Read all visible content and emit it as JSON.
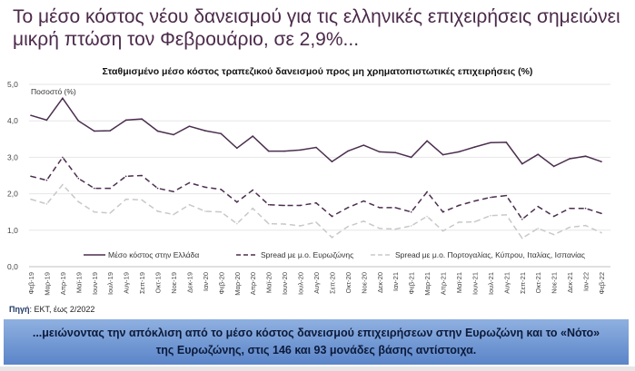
{
  "slide": {
    "title_line1": "Το μέσο κόστος νέου δανεισμού για τις ελληνικές επιχειρήσεις σημειώνει",
    "title_line2": "μικρή πτώση τον Φεβρουάριο, σε 2,9%...",
    "source_label": "Πηγή",
    "source_text": ": ΕΚΤ, έως 2/2022",
    "banner_line1": "...μειώνοντας την απόκλιση από το μέσο κόστος δανεισμού επιχειρήσεων στην Ευρωζώνη και το «Νότο»",
    "banner_line2": "της Ευρωζώνης, στις 146 και 93 μονάδες βάσης αντίστοιχα."
  },
  "chart_data": {
    "type": "line",
    "title": "Σταθμισμένο μέσο κόστος τραπεζικού δανεισμού προς μη χρηματοπιστωτικές επιχειρήσεις (%)",
    "ylabel": "Ποσοστό (%)",
    "ylim": [
      0,
      5
    ],
    "yticks": [
      "0,0",
      "1,0",
      "2,0",
      "3,0",
      "4,0",
      "5,0"
    ],
    "grid": true,
    "legend_placement": "bottom-inside",
    "categories": [
      "Φεβ-19",
      "Μαρ-19",
      "Απρ-19",
      "Μαϊ-19",
      "Ιουν-19",
      "Ιουλ-19",
      "Αυγ-19",
      "Σεπ-19",
      "Οκτ-19",
      "Νοε-19",
      "Δεκ-19",
      "Ιαν-20",
      "Φεβ-20",
      "Μαρ-20",
      "Απρ-20",
      "Μαϊ-20",
      "Ιουν-20",
      "Ιουλ-20",
      "Αυγ-20",
      "Σεπ-20",
      "Οκτ-20",
      "Νοε-20",
      "Δεκ-20",
      "Ιαν-21",
      "Φεβ-21",
      "Μαρ-21",
      "Απρ-21",
      "Μαϊ-21",
      "Ιουν-21",
      "Ιουλ-21",
      "Αυγ-21",
      "Σεπ-21",
      "Οκτ-21",
      "Νοε-21",
      "Δεκ-21",
      "Ιαν-22",
      "Φεβ-22"
    ],
    "series": [
      {
        "name": "Μέσο κόστος στην Ελλάδα",
        "color": "#4b2e4f",
        "dash": "solid",
        "values": [
          4.15,
          4.02,
          4.62,
          4.0,
          3.72,
          3.73,
          4.02,
          4.05,
          3.72,
          3.62,
          3.85,
          3.73,
          3.65,
          3.25,
          3.58,
          3.17,
          3.17,
          3.2,
          3.27,
          2.88,
          3.17,
          3.33,
          3.15,
          3.13,
          3.0,
          3.45,
          3.07,
          3.15,
          3.28,
          3.4,
          3.41,
          2.82,
          3.08,
          2.75,
          2.96,
          3.03,
          2.88
        ]
      },
      {
        "name": "Spread με μ.ο. Ευρωζώνης",
        "color": "#4b2e4f",
        "dash": "dashed",
        "values": [
          2.48,
          2.37,
          3.0,
          2.42,
          2.15,
          2.15,
          2.48,
          2.5,
          2.15,
          2.06,
          2.3,
          2.18,
          2.12,
          1.77,
          2.1,
          1.7,
          1.68,
          1.68,
          1.75,
          1.38,
          1.62,
          1.8,
          1.62,
          1.62,
          1.5,
          2.05,
          1.5,
          1.68,
          1.8,
          1.9,
          1.95,
          1.3,
          1.65,
          1.38,
          1.6,
          1.6,
          1.46
        ]
      },
      {
        "name": "Spread με μ.ο. Πορτογαλίας, Κύπρου, Ιταλίας, Ισπανίας",
        "color": "#c8c8c8",
        "dash": "dashed",
        "values": [
          1.85,
          1.72,
          2.25,
          1.78,
          1.5,
          1.47,
          1.85,
          1.83,
          1.52,
          1.43,
          1.7,
          1.52,
          1.5,
          1.18,
          1.6,
          1.18,
          1.17,
          1.12,
          1.22,
          0.8,
          1.1,
          1.25,
          1.05,
          1.03,
          1.12,
          1.38,
          0.98,
          1.22,
          1.23,
          1.4,
          1.42,
          0.78,
          1.05,
          0.88,
          1.08,
          1.13,
          0.93
        ]
      }
    ]
  }
}
